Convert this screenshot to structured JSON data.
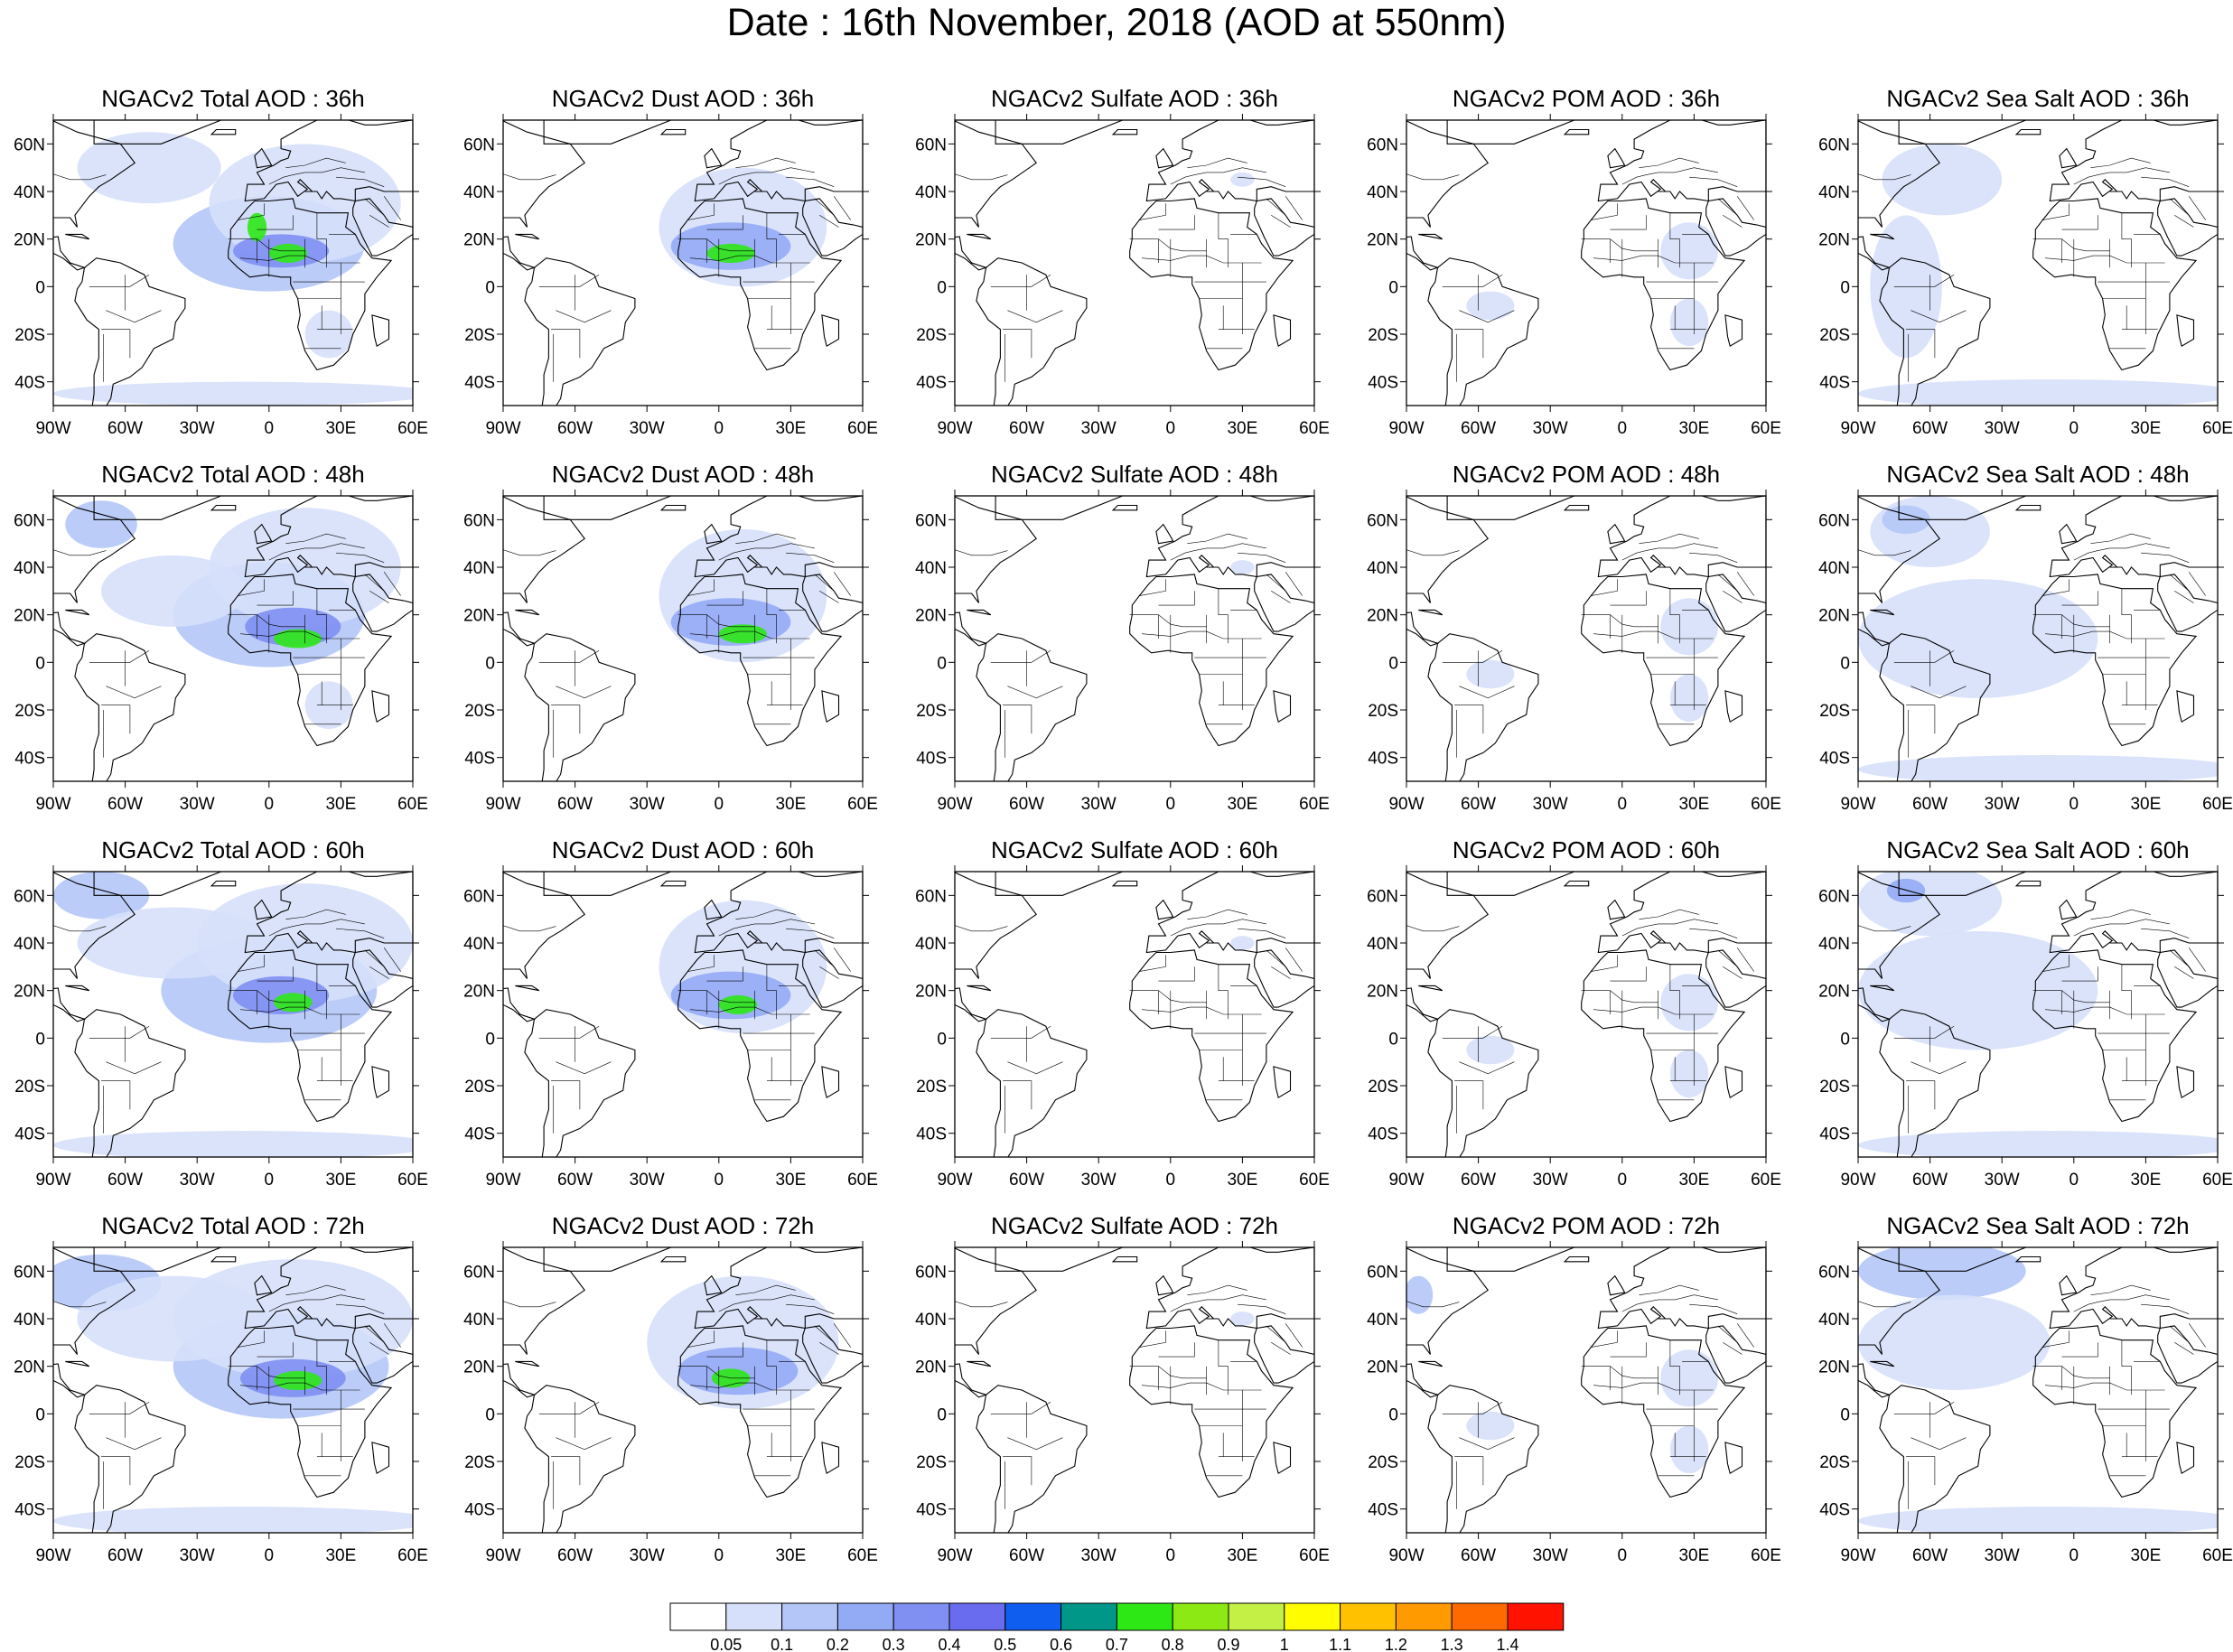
{
  "title": "Date : 16th November, 2018 (AOD at 550nm)",
  "columns": [
    {
      "key": "total",
      "label_prefix": "NGACv2 Total AOD : "
    },
    {
      "key": "dust",
      "label_prefix": "NGACv2 Dust AOD : "
    },
    {
      "key": "sulfate",
      "label_prefix": "NGACv2 Sulfate AOD : "
    },
    {
      "key": "pom",
      "label_prefix": "NGACv2 POM AOD : "
    },
    {
      "key": "seasalt",
      "label_prefix": "NGACv2 Sea Salt AOD : "
    }
  ],
  "rows": [
    {
      "forecast_hour": "36h"
    },
    {
      "forecast_hour": "48h"
    },
    {
      "forecast_hour": "60h"
    },
    {
      "forecast_hour": "72h"
    }
  ],
  "panel_titles": [
    [
      "NGACv2 Total AOD : 36h",
      "NGACv2 Dust AOD : 36h",
      "NGACv2 Sulfate AOD : 36h",
      "NGACv2 POM AOD : 36h",
      "NGACv2 Sea Salt AOD : 36h"
    ],
    [
      "NGACv2 Total AOD : 48h",
      "NGACv2 Dust AOD : 48h",
      "NGACv2 Sulfate AOD : 48h",
      "NGACv2 POM AOD : 48h",
      "NGACv2 Sea Salt AOD : 48h"
    ],
    [
      "NGACv2 Total AOD : 60h",
      "NGACv2 Dust AOD : 60h",
      "NGACv2 Sulfate AOD : 60h",
      "NGACv2 POM AOD : 60h",
      "NGACv2 Sea Salt AOD : 60h"
    ],
    [
      "NGACv2 Total AOD : 72h",
      "NGACv2 Dust AOD : 72h",
      "NGACv2 Sulfate AOD : 72h",
      "NGACv2 POM AOD : 72h",
      "NGACv2 Sea Salt  AOD : 72h"
    ]
  ],
  "map_extent": {
    "lon_min": -90,
    "lon_max": 60,
    "lat_min": -50,
    "lat_max": 70
  },
  "lon_ticks": [
    {
      "value": -90,
      "label": "90W"
    },
    {
      "value": -60,
      "label": "60W"
    },
    {
      "value": -30,
      "label": "30W"
    },
    {
      "value": 0,
      "label": "0"
    },
    {
      "value": 30,
      "label": "30E"
    },
    {
      "value": 60,
      "label": "60E"
    }
  ],
  "lat_ticks": [
    {
      "value": 60,
      "label": "60N"
    },
    {
      "value": 40,
      "label": "40N"
    },
    {
      "value": 20,
      "label": "20N"
    },
    {
      "value": 0,
      "label": "0"
    },
    {
      "value": -20,
      "label": "20S"
    },
    {
      "value": -40,
      "label": "40S"
    }
  ],
  "colorbar": {
    "boundaries": [
      "0.05",
      "0.1",
      "0.2",
      "0.3",
      "0.4",
      "0.5",
      "0.6",
      "0.7",
      "0.8",
      "0.9",
      "1",
      "1.1",
      "1.2",
      "1.3",
      "1.4"
    ],
    "colors": [
      "#ffffff",
      "#d6e0fa",
      "#b4c6f7",
      "#93aaf5",
      "#7f8ff2",
      "#6a6cef",
      "#0f5ef0",
      "#009688",
      "#2ee816",
      "#8de914",
      "#c4f045",
      "#fffd00",
      "#ffc100",
      "#ff9a00",
      "#ff6a00",
      "#ff1200"
    ]
  },
  "aerosol_fields": {
    "total": [
      [
        {
          "lon": 0,
          "lat": 18,
          "rlon": 40,
          "rlat": 20,
          "level": 2
        },
        {
          "lon": 15,
          "lat": 35,
          "rlon": 40,
          "rlat": 25,
          "level": 1
        },
        {
          "lon": -50,
          "lat": 50,
          "rlon": 30,
          "rlat": 15,
          "level": 1
        },
        {
          "lon": 5,
          "lat": 15,
          "rlon": 20,
          "rlat": 7,
          "level": 4
        },
        {
          "lon": 8,
          "lat": 14,
          "rlon": 8,
          "rlat": 4,
          "level": 8
        },
        {
          "lon": -5,
          "lat": 25,
          "rlon": 4,
          "rlat": 6,
          "level": 8
        },
        {
          "lon": 25,
          "lat": -20,
          "rlon": 10,
          "rlat": 10,
          "level": 1
        },
        {
          "lon": -10,
          "lat": -45,
          "rlon": 80,
          "rlat": 5,
          "level": 1
        }
      ],
      [
        {
          "lon": 0,
          "lat": 20,
          "rlon": 40,
          "rlat": 22,
          "level": 2
        },
        {
          "lon": 15,
          "lat": 40,
          "rlon": 40,
          "rlat": 25,
          "level": 1
        },
        {
          "lon": -70,
          "lat": 58,
          "rlon": 15,
          "rlat": 10,
          "level": 2
        },
        {
          "lon": 10,
          "lat": 15,
          "rlon": 20,
          "rlat": 8,
          "level": 4
        },
        {
          "lon": 12,
          "lat": 10,
          "rlon": 10,
          "rlat": 4,
          "level": 8
        },
        {
          "lon": -40,
          "lat": 30,
          "rlon": 30,
          "rlat": 15,
          "level": 1
        },
        {
          "lon": 25,
          "lat": -18,
          "rlon": 10,
          "rlat": 10,
          "level": 1
        }
      ],
      [
        {
          "lon": 0,
          "lat": 20,
          "rlon": 45,
          "rlat": 22,
          "level": 2
        },
        {
          "lon": 15,
          "lat": 40,
          "rlon": 45,
          "rlat": 25,
          "level": 1
        },
        {
          "lon": -70,
          "lat": 60,
          "rlon": 20,
          "rlat": 10,
          "level": 2
        },
        {
          "lon": 5,
          "lat": 18,
          "rlon": 20,
          "rlat": 8,
          "level": 4
        },
        {
          "lon": 10,
          "lat": 15,
          "rlon": 8,
          "rlat": 4,
          "level": 8
        },
        {
          "lon": -10,
          "lat": -45,
          "rlon": 80,
          "rlat": 6,
          "level": 1
        },
        {
          "lon": -40,
          "lat": 40,
          "rlon": 40,
          "rlat": 15,
          "level": 1
        }
      ],
      [
        {
          "lon": 5,
          "lat": 20,
          "rlon": 45,
          "rlat": 22,
          "level": 2
        },
        {
          "lon": 10,
          "lat": 40,
          "rlon": 50,
          "rlat": 25,
          "level": 1
        },
        {
          "lon": -70,
          "lat": 55,
          "rlon": 25,
          "rlat": 12,
          "level": 2
        },
        {
          "lon": 10,
          "lat": 15,
          "rlon": 22,
          "rlat": 8,
          "level": 4
        },
        {
          "lon": 12,
          "lat": 14,
          "rlon": 10,
          "rlat": 4,
          "level": 8
        },
        {
          "lon": -10,
          "lat": -45,
          "rlon": 80,
          "rlat": 6,
          "level": 1
        },
        {
          "lon": -40,
          "lat": 40,
          "rlon": 40,
          "rlat": 18,
          "level": 1
        }
      ]
    ],
    "dust": [
      [
        {
          "lon": 10,
          "lat": 25,
          "rlon": 35,
          "rlat": 25,
          "level": 1
        },
        {
          "lon": 5,
          "lat": 17,
          "rlon": 25,
          "rlat": 10,
          "level": 3
        },
        {
          "lon": 5,
          "lat": 14,
          "rlon": 10,
          "rlat": 4,
          "level": 8
        }
      ],
      [
        {
          "lon": 10,
          "lat": 28,
          "rlon": 35,
          "rlat": 28,
          "level": 1
        },
        {
          "lon": 5,
          "lat": 17,
          "rlon": 25,
          "rlat": 10,
          "level": 3
        },
        {
          "lon": 10,
          "lat": 12,
          "rlon": 10,
          "rlat": 4,
          "level": 8
        }
      ],
      [
        {
          "lon": 10,
          "lat": 30,
          "rlon": 35,
          "rlat": 28,
          "level": 1
        },
        {
          "lon": 5,
          "lat": 18,
          "rlon": 25,
          "rlat": 10,
          "level": 3
        },
        {
          "lon": 8,
          "lat": 14,
          "rlon": 8,
          "rlat": 4,
          "level": 8
        }
      ],
      [
        {
          "lon": 10,
          "lat": 30,
          "rlon": 40,
          "rlat": 28,
          "level": 1
        },
        {
          "lon": 8,
          "lat": 18,
          "rlon": 25,
          "rlat": 10,
          "level": 3
        },
        {
          "lon": 5,
          "lat": 15,
          "rlon": 8,
          "rlat": 4,
          "level": 8
        }
      ]
    ],
    "sulfate": [
      [
        {
          "lon": 30,
          "lat": 45,
          "rlon": 5,
          "rlat": 3,
          "level": 1
        }
      ],
      [
        {
          "lon": 30,
          "lat": 40,
          "rlon": 5,
          "rlat": 3,
          "level": 1
        }
      ],
      [
        {
          "lon": 30,
          "lat": 40,
          "rlon": 5,
          "rlat": 3,
          "level": 1
        }
      ],
      [
        {
          "lon": 30,
          "lat": 40,
          "rlon": 5,
          "rlat": 3,
          "level": 1
        }
      ]
    ],
    "pom": [
      [
        {
          "lon": 28,
          "lat": 15,
          "rlon": 12,
          "rlat": 12,
          "level": 1
        },
        {
          "lon": 28,
          "lat": -15,
          "rlon": 8,
          "rlat": 10,
          "level": 1
        },
        {
          "lon": -55,
          "lat": -8,
          "rlon": 10,
          "rlat": 6,
          "level": 1
        }
      ],
      [
        {
          "lon": 28,
          "lat": 15,
          "rlon": 12,
          "rlat": 12,
          "level": 1
        },
        {
          "lon": 28,
          "lat": -15,
          "rlon": 8,
          "rlat": 10,
          "level": 1
        },
        {
          "lon": -55,
          "lat": -5,
          "rlon": 10,
          "rlat": 6,
          "level": 1
        }
      ],
      [
        {
          "lon": 28,
          "lat": 15,
          "rlon": 12,
          "rlat": 12,
          "level": 1
        },
        {
          "lon": 28,
          "lat": -15,
          "rlon": 8,
          "rlat": 10,
          "level": 1
        },
        {
          "lon": -55,
          "lat": -5,
          "rlon": 10,
          "rlat": 6,
          "level": 1
        }
      ],
      [
        {
          "lon": 28,
          "lat": 15,
          "rlon": 12,
          "rlat": 12,
          "level": 1
        },
        {
          "lon": 28,
          "lat": -15,
          "rlon": 8,
          "rlat": 10,
          "level": 1
        },
        {
          "lon": -55,
          "lat": -5,
          "rlon": 10,
          "rlat": 6,
          "level": 1
        },
        {
          "lon": -85,
          "lat": 50,
          "rlon": 6,
          "rlat": 8,
          "level": 2
        }
      ]
    ],
    "seasalt": [
      [
        {
          "lon": -55,
          "lat": 45,
          "rlon": 25,
          "rlat": 15,
          "level": 1
        },
        {
          "lon": -10,
          "lat": -45,
          "rlon": 80,
          "rlat": 6,
          "level": 1
        },
        {
          "lon": -70,
          "lat": 0,
          "rlon": 15,
          "rlat": 30,
          "level": 1
        }
      ],
      [
        {
          "lon": -60,
          "lat": 55,
          "rlon": 25,
          "rlat": 15,
          "level": 1
        },
        {
          "lon": -70,
          "lat": 60,
          "rlon": 10,
          "rlat": 6,
          "level": 2
        },
        {
          "lon": -10,
          "lat": -45,
          "rlon": 80,
          "rlat": 6,
          "level": 1
        },
        {
          "lon": -40,
          "lat": 10,
          "rlon": 50,
          "rlat": 25,
          "level": 1
        }
      ],
      [
        {
          "lon": -60,
          "lat": 58,
          "rlon": 30,
          "rlat": 15,
          "level": 1
        },
        {
          "lon": -70,
          "lat": 62,
          "rlon": 8,
          "rlat": 5,
          "level": 3
        },
        {
          "lon": -10,
          "lat": -45,
          "rlon": 80,
          "rlat": 6,
          "level": 1
        },
        {
          "lon": -40,
          "lat": 20,
          "rlon": 50,
          "rlat": 25,
          "level": 1
        }
      ],
      [
        {
          "lon": -55,
          "lat": 60,
          "rlon": 35,
          "rlat": 12,
          "level": 2
        },
        {
          "lon": -10,
          "lat": -45,
          "rlon": 80,
          "rlat": 6,
          "level": 1
        },
        {
          "lon": -50,
          "lat": 30,
          "rlon": 40,
          "rlat": 20,
          "level": 1
        }
      ]
    ]
  }
}
